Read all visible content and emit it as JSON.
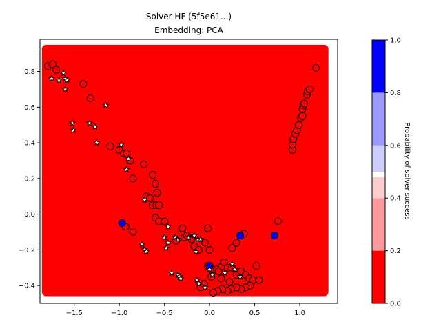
{
  "chart_data": {
    "type": "scatter",
    "title_line1": "Solver HF (5f5e61...)",
    "title_line2": "Embedding: PCA",
    "xlabel": "",
    "ylabel": "",
    "xlim": [
      -1.88,
      1.42
    ],
    "ylim": [
      -0.5,
      0.98
    ],
    "x_ticks": [
      -1.5,
      -1.0,
      -0.5,
      0.0,
      0.5,
      1.0
    ],
    "x_tick_labels": [
      "−1.5",
      "−1.0",
      "−0.5",
      "0.0",
      "0.5",
      "1.0"
    ],
    "y_ticks": [
      -0.4,
      -0.2,
      0.0,
      0.2,
      0.4,
      0.6,
      0.8
    ],
    "y_tick_labels": [
      "−0.4",
      "−0.2",
      "0.0",
      "0.2",
      "0.4",
      "0.6",
      "0.8"
    ],
    "background_region": {
      "x": [
        -1.82,
        1.28
      ],
      "y": [
        -0.44,
        0.93
      ],
      "color": "#ff0000"
    },
    "colorbar": {
      "label": "Probability of solver success",
      "range": [
        0,
        1
      ],
      "ticks": [
        "0.0",
        "0.2",
        "0.4",
        "0.6",
        "0.8",
        "1.0"
      ],
      "bands": [
        {
          "from": 0.0,
          "to": 0.2,
          "color": "#ff0000"
        },
        {
          "from": 0.2,
          "to": 0.4,
          "color": "#ff9a9a"
        },
        {
          "from": 0.4,
          "to": 0.48,
          "color": "#ffcdcd"
        },
        {
          "from": 0.48,
          "to": 0.5,
          "color": "#ffffff"
        },
        {
          "from": 0.5,
          "to": 0.6,
          "color": "#cdcdff"
        },
        {
          "from": 0.6,
          "to": 0.8,
          "color": "#9a9aff"
        },
        {
          "from": 0.8,
          "to": 1.0,
          "color": "#0000ff"
        }
      ]
    },
    "circles_red": [
      [
        -1.79,
        0.83
      ],
      [
        -1.74,
        0.84
      ],
      [
        -1.7,
        0.81
      ],
      [
        -1.4,
        0.73
      ],
      [
        -1.32,
        0.65
      ],
      [
        -1.1,
        0.38
      ],
      [
        -1.0,
        0.36
      ],
      [
        -0.95,
        0.34
      ],
      [
        -0.92,
        0.34
      ],
      [
        -0.88,
        0.3
      ],
      [
        -0.85,
        0.2
      ],
      [
        -0.73,
        0.28
      ],
      [
        -0.63,
        0.22
      ],
      [
        -0.6,
        0.17
      ],
      [
        -0.58,
        0.12
      ],
      [
        -0.7,
        0.1
      ],
      [
        -0.66,
        0.09
      ],
      [
        -0.63,
        0.05
      ],
      [
        -0.59,
        0.05
      ],
      [
        -0.56,
        0.05
      ],
      [
        -0.6,
        -0.02
      ],
      [
        -0.56,
        -0.04
      ],
      [
        -0.5,
        -0.04
      ],
      [
        -0.85,
        -0.1
      ],
      [
        -0.93,
        -0.07
      ],
      [
        -0.37,
        -0.15
      ],
      [
        -0.3,
        -0.08
      ],
      [
        -0.28,
        -0.13
      ],
      [
        -0.25,
        -0.12
      ],
      [
        -0.2,
        -0.14
      ],
      [
        -0.17,
        -0.18
      ],
      [
        -0.12,
        -0.2
      ],
      [
        -0.05,
        -0.16
      ],
      [
        -0.02,
        -0.08
      ],
      [
        0.0,
        -0.2
      ],
      [
        0.25,
        -0.19
      ],
      [
        0.3,
        -0.16
      ],
      [
        0.38,
        -0.11
      ],
      [
        0.76,
        -0.04
      ],
      [
        -0.02,
        -0.29
      ],
      [
        0.02,
        -0.31
      ],
      [
        0.08,
        -0.31
      ],
      [
        0.1,
        -0.32
      ],
      [
        0.14,
        -0.29
      ],
      [
        0.16,
        -0.27
      ],
      [
        0.2,
        -0.3
      ],
      [
        0.25,
        -0.3
      ],
      [
        0.3,
        -0.34
      ],
      [
        0.35,
        -0.32
      ],
      [
        0.4,
        -0.34
      ],
      [
        0.44,
        -0.36
      ],
      [
        0.48,
        -0.37
      ],
      [
        0.52,
        -0.29
      ],
      [
        0.55,
        -0.37
      ],
      [
        0.45,
        -0.4
      ],
      [
        0.4,
        -0.41
      ],
      [
        0.35,
        -0.42
      ],
      [
        0.3,
        -0.41
      ],
      [
        0.24,
        -0.42
      ],
      [
        0.2,
        -0.43
      ],
      [
        0.14,
        -0.42
      ],
      [
        0.09,
        -0.43
      ],
      [
        0.04,
        -0.44
      ],
      [
        -0.06,
        -0.39
      ],
      [
        -0.1,
        -0.41
      ],
      [
        0.02,
        -0.35
      ],
      [
        0.13,
        -0.36
      ],
      [
        0.22,
        -0.38
      ],
      [
        0.92,
        0.36
      ],
      [
        0.92,
        0.39
      ],
      [
        0.93,
        0.42
      ],
      [
        0.95,
        0.45
      ],
      [
        0.97,
        0.47
      ],
      [
        0.99,
        0.5
      ],
      [
        1.01,
        0.54
      ],
      [
        1.03,
        0.55
      ],
      [
        1.03,
        0.59
      ],
      [
        1.04,
        0.61
      ],
      [
        1.05,
        0.62
      ],
      [
        1.08,
        0.67
      ],
      [
        1.09,
        0.69
      ],
      [
        1.11,
        0.7
      ],
      [
        1.18,
        0.82
      ]
    ],
    "circles_blue": [
      [
        -0.97,
        -0.05
      ],
      [
        0.0,
        -0.29
      ],
      [
        0.34,
        -0.12
      ],
      [
        0.72,
        -0.12
      ]
    ],
    "stars": [
      [
        -1.75,
        0.76
      ],
      [
        -1.67,
        0.75
      ],
      [
        -1.62,
        0.79
      ],
      [
        -1.6,
        0.76
      ],
      [
        -1.58,
        0.75
      ],
      [
        -1.6,
        0.7
      ],
      [
        -1.52,
        0.51
      ],
      [
        -1.51,
        0.47
      ],
      [
        -1.33,
        0.51
      ],
      [
        -1.27,
        0.49
      ],
      [
        -1.25,
        0.4
      ],
      [
        -1.15,
        0.61
      ],
      [
        -0.98,
        0.39
      ],
      [
        -0.9,
        0.31
      ],
      [
        -0.92,
        0.25
      ],
      [
        -0.72,
        0.08
      ],
      [
        -0.75,
        -0.17
      ],
      [
        -0.72,
        -0.2
      ],
      [
        -0.7,
        -0.21
      ],
      [
        -0.5,
        -0.13
      ],
      [
        -0.46,
        -0.07
      ],
      [
        -0.46,
        -0.16
      ],
      [
        -0.48,
        -0.19
      ],
      [
        -0.42,
        -0.33
      ],
      [
        -0.35,
        -0.34
      ],
      [
        -0.33,
        -0.35
      ],
      [
        -0.32,
        -0.36
      ],
      [
        -0.38,
        -0.13
      ],
      [
        -0.35,
        -0.14
      ],
      [
        -0.23,
        -0.13
      ],
      [
        -0.17,
        -0.12
      ],
      [
        -0.15,
        -0.21
      ],
      [
        -0.13,
        -0.14
      ],
      [
        -0.1,
        -0.14
      ],
      [
        -0.14,
        -0.37
      ],
      [
        -0.12,
        -0.39
      ],
      [
        -0.05,
        -0.41
      ],
      [
        0.0,
        -0.31
      ],
      [
        0.03,
        -0.34
      ],
      [
        0.17,
        -0.33
      ],
      [
        0.25,
        -0.28
      ],
      [
        0.28,
        -0.31
      ],
      [
        0.34,
        -0.35
      ]
    ]
  }
}
